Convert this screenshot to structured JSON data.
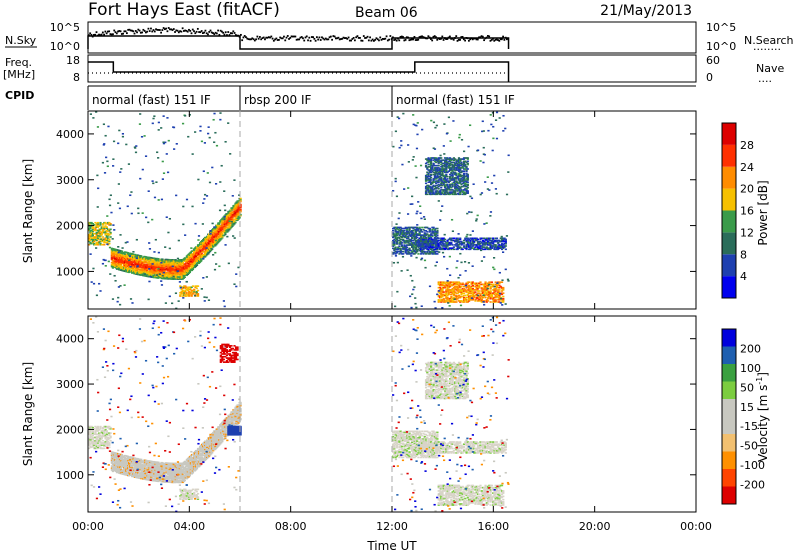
{
  "header": {
    "title": "Fort Hays East (fitACF)",
    "beam": "Beam 06",
    "date": "21/May/2013"
  },
  "nsky_panel": {
    "left_label": "N.Sky",
    "left_ticks": [
      "10^5",
      "10^0"
    ],
    "right_ticks": [
      "10^5",
      "10^0"
    ],
    "right_label": "N.Search",
    "right_legend": "........"
  },
  "freq_panel": {
    "left_label_1": "Freq.",
    "left_label_2": "[MHz]",
    "left_ticks": [
      "18",
      "8"
    ],
    "right_ticks": [
      "60",
      "0"
    ],
    "right_label": "Nave",
    "right_legend": "...."
  },
  "cpid": {
    "label": "CPID",
    "segments": [
      {
        "start": 0,
        "end": 6,
        "name": "normal (fast) 151 IF"
      },
      {
        "start": 6,
        "end": 12,
        "name": "rbsp 200 IF"
      },
      {
        "start": 12,
        "end": 24,
        "name": "normal (fast) 151 IF"
      }
    ]
  },
  "x_axis": {
    "label": "Time UT",
    "ticks": [
      "00:00",
      "04:00",
      "08:00",
      "12:00",
      "16:00",
      "20:00",
      "00:00"
    ],
    "tick_hours": [
      0,
      4,
      8,
      12,
      16,
      20,
      24
    ]
  },
  "chart_data": [
    {
      "type": "heatmap",
      "panel": "power",
      "xlabel": "Time UT",
      "ylabel": "Slant Range [km]",
      "xlim_hours": [
        0,
        24
      ],
      "ylim_km": [
        180,
        4500
      ],
      "yticks": [
        1000,
        2000,
        3000,
        4000
      ],
      "colorbar_label": "Power [dB]",
      "colorbar_ticks": [
        "28",
        "24",
        "20",
        "16",
        "12",
        "8",
        "4"
      ],
      "colorbar_range": [
        0,
        30
      ],
      "colors": [
        "#0000ee",
        "#1e40b0",
        "#2a6d5a",
        "#3a9b4a",
        "#f6c000",
        "#ff8c00",
        "#ff3000",
        "#dd0000"
      ],
      "bands": [
        {
          "t": [
            0.0,
            0.9
          ],
          "r": [
            1600,
            2100
          ],
          "level": 16
        },
        {
          "t": [
            0.9,
            6.0
          ],
          "r_start": [
            1100,
            1500
          ],
          "r_mid": [
            850,
            1300
          ],
          "r_end": [
            2000,
            2500
          ],
          "level": 18
        },
        {
          "t": [
            3.6,
            4.3
          ],
          "r": [
            480,
            700
          ],
          "level": 18
        },
        {
          "t": [
            12.0,
            13.8
          ],
          "r": [
            1400,
            2000
          ],
          "level": 8
        },
        {
          "t": [
            13.0,
            16.5
          ],
          "r": [
            1500,
            1750
          ],
          "level": 6
        },
        {
          "t": [
            13.8,
            16.4
          ],
          "r": [
            350,
            800
          ],
          "level": 20
        },
        {
          "t": [
            13.3,
            15.0
          ],
          "r": [
            2700,
            3500
          ],
          "level": 8
        }
      ]
    },
    {
      "type": "heatmap",
      "panel": "velocity",
      "xlabel": "Time UT",
      "ylabel": "Slant Range [km]",
      "xlim_hours": [
        0,
        24
      ],
      "ylim_km": [
        180,
        4500
      ],
      "yticks": [
        1000,
        2000,
        3000,
        4000
      ],
      "colorbar_label": "Velocity [m s^-1]",
      "colorbar_ticks": [
        "200",
        "100",
        "50",
        "15",
        "-15",
        "-50",
        "-100",
        "-200"
      ],
      "colorbar_range": [
        -250,
        250
      ],
      "colors": [
        "#dd0000",
        "#ff4400",
        "#ff9000",
        "#f2c070",
        "#c8c8c0",
        "#c8c8c0",
        "#7ccd40",
        "#3aa040",
        "#1e5fb0",
        "#0000dd"
      ]
    }
  ]
}
